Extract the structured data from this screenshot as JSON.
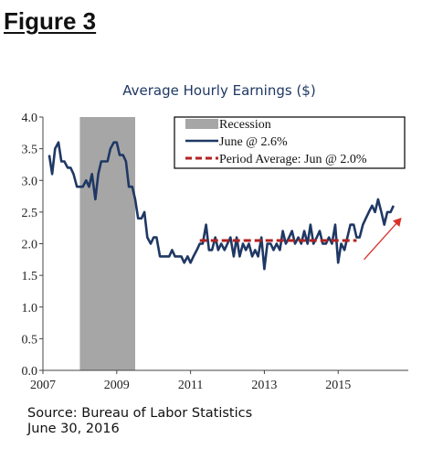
{
  "figure_label": "Figure 3",
  "source_line1": "Source: Bureau of Labor Statistics",
  "source_line2": "June 30, 2016",
  "chart_data": {
    "type": "line",
    "title": "Average Hourly Earnings ($)",
    "xlabel": "",
    "ylabel": "",
    "xlim": [
      2007.0,
      2016.9
    ],
    "ylim": [
      0.0,
      4.0
    ],
    "x_ticks": [
      "2007",
      "2009",
      "2011",
      "2013",
      "2015"
    ],
    "y_ticks": [
      "0.0",
      "0.5",
      "1.0",
      "1.5",
      "2.0",
      "2.5",
      "3.0",
      "3.5",
      "4.0"
    ],
    "grid": false,
    "legend_placement": "top-right",
    "legend": {
      "recession_label": "Recession",
      "series_label": "June @ 2.6%",
      "average_label": "Period Average: Jun @ 2.0%"
    },
    "recession": {
      "x_start": 2008.0,
      "x_end": 2009.5,
      "color": "#a6a6a6"
    },
    "series": [
      {
        "name": "June @ 2.6%",
        "color": "#1f3864",
        "x": [
          2007.17,
          2007.25,
          2007.33,
          2007.42,
          2007.5,
          2007.58,
          2007.67,
          2007.75,
          2007.83,
          2007.92,
          2008.0,
          2008.08,
          2008.17,
          2008.25,
          2008.33,
          2008.42,
          2008.5,
          2008.58,
          2008.67,
          2008.75,
          2008.83,
          2008.92,
          2009.0,
          2009.08,
          2009.17,
          2009.25,
          2009.33,
          2009.42,
          2009.5,
          2009.58,
          2009.67,
          2009.75,
          2009.83,
          2009.92,
          2010.0,
          2010.08,
          2010.17,
          2010.25,
          2010.33,
          2010.42,
          2010.5,
          2010.58,
          2010.67,
          2010.75,
          2010.83,
          2010.92,
          2011.0,
          2011.08,
          2011.17,
          2011.25,
          2011.33,
          2011.42,
          2011.5,
          2011.58,
          2011.67,
          2011.75,
          2011.83,
          2011.92,
          2012.0,
          2012.08,
          2012.17,
          2012.25,
          2012.33,
          2012.42,
          2012.5,
          2012.58,
          2012.67,
          2012.75,
          2012.83,
          2012.92,
          2013.0,
          2013.08,
          2013.17,
          2013.25,
          2013.33,
          2013.42,
          2013.5,
          2013.58,
          2013.67,
          2013.75,
          2013.83,
          2013.92,
          2014.0,
          2014.08,
          2014.17,
          2014.25,
          2014.33,
          2014.42,
          2014.5,
          2014.58,
          2014.67,
          2014.75,
          2014.83,
          2014.92,
          2015.0,
          2015.08,
          2015.17,
          2015.25,
          2015.33,
          2015.42,
          2015.5,
          2015.58,
          2015.67,
          2015.75,
          2015.83,
          2015.92,
          2016.0,
          2016.08,
          2016.17,
          2016.25,
          2016.33,
          2016.42,
          2016.5
        ],
        "values": [
          3.4,
          3.1,
          3.5,
          3.6,
          3.3,
          3.3,
          3.2,
          3.2,
          3.1,
          2.9,
          2.9,
          2.9,
          3.0,
          2.9,
          3.1,
          2.7,
          3.1,
          3.3,
          3.3,
          3.3,
          3.5,
          3.6,
          3.6,
          3.4,
          3.4,
          3.3,
          2.9,
          2.9,
          2.7,
          2.4,
          2.4,
          2.5,
          2.1,
          2.0,
          2.1,
          2.1,
          1.8,
          1.8,
          1.8,
          1.8,
          1.9,
          1.8,
          1.8,
          1.8,
          1.7,
          1.8,
          1.7,
          1.8,
          1.9,
          2.0,
          2.0,
          2.3,
          1.9,
          1.9,
          2.1,
          1.9,
          2.0,
          1.9,
          2.0,
          2.1,
          1.8,
          2.1,
          1.8,
          2.0,
          1.9,
          2.0,
          1.8,
          1.9,
          1.8,
          2.1,
          1.6,
          2.0,
          2.0,
          1.9,
          2.0,
          1.9,
          2.2,
          2.0,
          2.1,
          2.2,
          2.0,
          2.1,
          2.0,
          2.2,
          2.0,
          2.3,
          2.0,
          2.1,
          2.2,
          2.0,
          2.0,
          2.1,
          2.0,
          2.3,
          1.7,
          2.0,
          1.9,
          2.1,
          2.3,
          2.3,
          2.1,
          2.1,
          2.3,
          2.4,
          2.5,
          2.6,
          2.5,
          2.7,
          2.5,
          2.3,
          2.5,
          2.5,
          2.6
        ]
      },
      {
        "name": "Period Average: Jun @ 2.0%",
        "color": "#b22222",
        "x": [
          2011.25,
          2015.5
        ],
        "values": [
          2.05,
          2.05
        ]
      }
    ],
    "annotation_arrow": {
      "x_start": 2015.7,
      "y_start": 1.75,
      "x_end": 2016.7,
      "y_end": 2.4,
      "color": "#d9302a"
    }
  }
}
